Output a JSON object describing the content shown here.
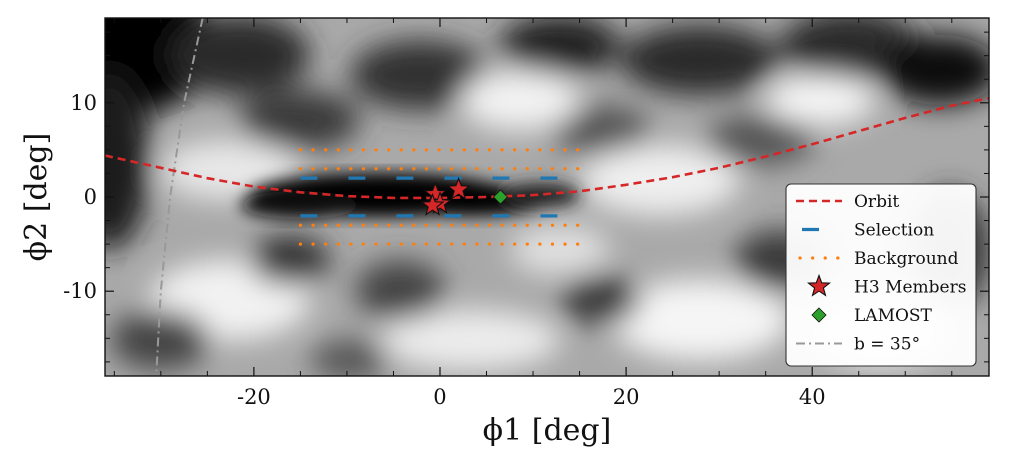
{
  "chart_data": {
    "type": "scatter",
    "title": "",
    "xlabel": "ϕ1 [deg]",
    "ylabel": "ϕ2 [deg]",
    "xlim": [
      -36,
      59
    ],
    "ylim": [
      -19,
      19
    ],
    "xticks": [
      -20,
      0,
      20,
      40
    ],
    "yticks": [
      -10,
      0,
      10
    ],
    "grid": false,
    "legend_position": "right",
    "background": "grayscale density map (dark = high stellar density)",
    "series": [
      {
        "name": "Orbit",
        "style": "dashed-line",
        "color": "#d62728",
        "x": [
          -36,
          -30,
          -25,
          -20,
          -15,
          -10,
          -5,
          0,
          5,
          10,
          15,
          20,
          25,
          30,
          35,
          40,
          45,
          50,
          55,
          59
        ],
        "y": [
          4.4,
          3.1,
          2.0,
          1.1,
          0.5,
          0.1,
          -0.1,
          -0.1,
          0.0,
          0.2,
          0.6,
          1.3,
          2.1,
          3.1,
          4.3,
          5.6,
          7.0,
          8.4,
          9.7,
          10.5
        ]
      },
      {
        "name": "Selection",
        "style": "dashed-horizontal-lines",
        "color": "#1f77b4",
        "x_range": [
          -15,
          13
        ],
        "y_levels": [
          2,
          -2
        ]
      },
      {
        "name": "Background",
        "style": "dotted-horizontal-lines",
        "color": "#ff7f0e",
        "x_range": [
          -15,
          15
        ],
        "y_levels": [
          5,
          3,
          -3,
          -5
        ]
      },
      {
        "name": "H3 Members",
        "style": "star-markers",
        "color": "#d62728",
        "x": [
          2.0,
          -0.5,
          0.0,
          -0.8
        ],
        "y": [
          0.8,
          0.3,
          -0.7,
          -0.9
        ]
      },
      {
        "name": "LAMOST",
        "style": "diamond-marker",
        "color": "#2ca02c",
        "x": [
          6.5
        ],
        "y": [
          0.0
        ]
      },
      {
        "name": "b = 35°",
        "style": "dash-dot-line",
        "color": "#999999",
        "x": [
          -25.5,
          -27.5,
          -29.0,
          -30.0,
          -30.5
        ],
        "y": [
          19.0,
          10.0,
          0.0,
          -10.0,
          -19.0
        ]
      }
    ],
    "legend": {
      "entries": [
        "Orbit",
        "Selection",
        "Background",
        "H3 Members",
        "LAMOST",
        "b = 35°"
      ]
    }
  }
}
